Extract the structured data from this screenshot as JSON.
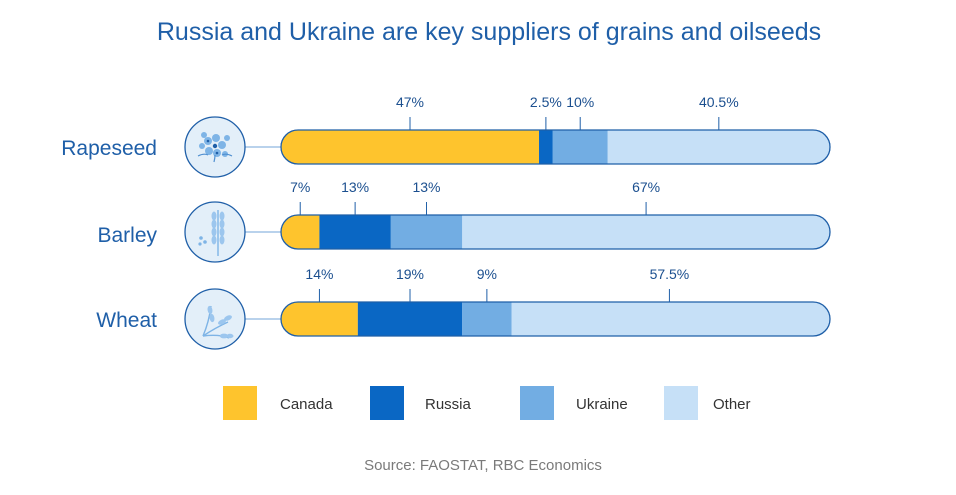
{
  "title": "Russia and Ukraine are key suppliers of grains and oilseeds",
  "source": "Source: FAOSTAT, RBC Economics",
  "chart_data": {
    "type": "bar",
    "orientation": "horizontal",
    "stacked": true,
    "unit": "%",
    "categories": [
      "Rapeseed",
      "Barley",
      "Wheat"
    ],
    "category_icons": [
      "flower-icon",
      "barley-icon",
      "wheat-icon"
    ],
    "series": [
      {
        "name": "Canada",
        "color": "#fec42d",
        "values": [
          47,
          7,
          14
        ],
        "labels": [
          "47%",
          "7%",
          "14%"
        ]
      },
      {
        "name": "Russia",
        "color": "#0a67c4",
        "values": [
          2.5,
          13,
          19
        ],
        "labels": [
          "2.5%",
          "13%",
          "19%"
        ]
      },
      {
        "name": "Ukraine",
        "color": "#72ade3",
        "values": [
          10,
          13,
          9
        ],
        "labels": [
          "10%",
          "13%",
          "9%"
        ]
      },
      {
        "name": "Other",
        "color": "#c6e0f7",
        "values": [
          40.5,
          67,
          57.5
        ],
        "labels": [
          "40.5%",
          "67%",
          "57.5%"
        ]
      }
    ],
    "xlim": [
      0,
      100
    ],
    "legend_position": "bottom",
    "grid": false
  }
}
